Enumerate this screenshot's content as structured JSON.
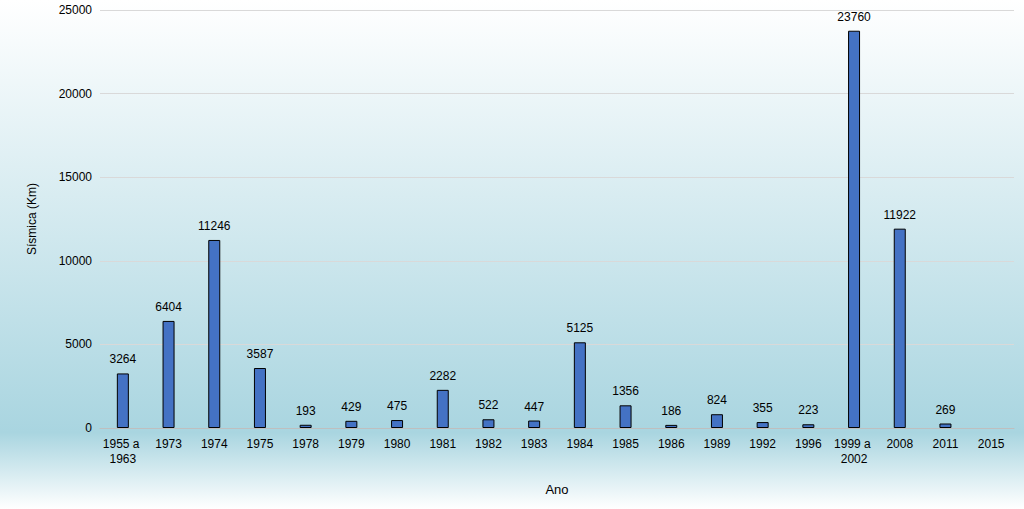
{
  "chart_data": {
    "type": "bar",
    "categories": [
      "1955 a 1963",
      "1973",
      "1974",
      "1975",
      "1978",
      "1979",
      "1980",
      "1981",
      "1982",
      "1983",
      "1984",
      "1985",
      "1986",
      "1989",
      "1992",
      "1996",
      "1999 a 2002",
      "2008",
      "2011",
      "2015"
    ],
    "values": [
      3264,
      6404,
      11246,
      3587,
      193,
      429,
      475,
      2282,
      522,
      447,
      5125,
      1356,
      186,
      824,
      355,
      223,
      23760,
      11922,
      269,
      null
    ],
    "color": "#4472c4",
    "x_label": "Ano",
    "y_label": "Sísmica (Km)",
    "ylim": [
      0,
      25000
    ],
    "yticks": [
      0,
      5000,
      10000,
      15000,
      20000,
      25000
    ],
    "grid": true,
    "data_labels": true
  }
}
